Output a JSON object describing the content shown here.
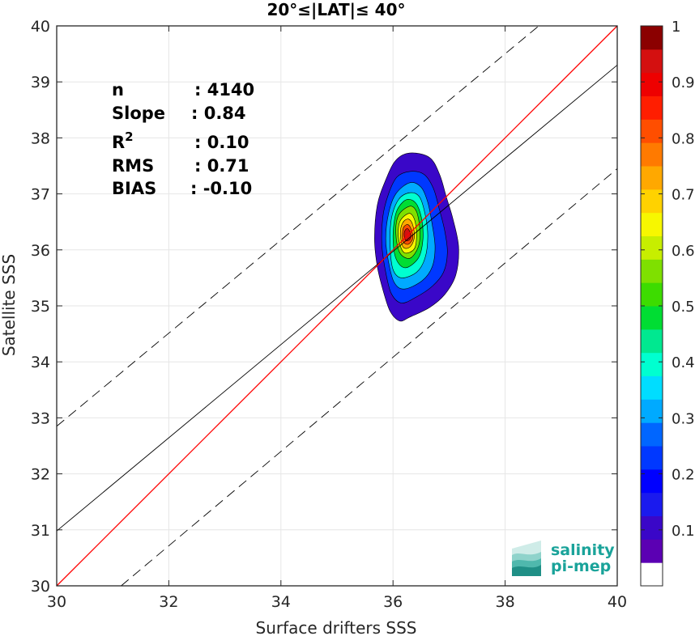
{
  "chart_data": {
    "type": "scatter",
    "subtype": "density-contour",
    "title": "20°≤|LAT|≤ 40°",
    "xlabel": "Surface drifters SSS",
    "ylabel": "Satellite SSS",
    "xlim": [
      30,
      40
    ],
    "ylim": [
      30,
      40
    ],
    "x_ticks": [
      "30",
      "32",
      "34",
      "36",
      "38",
      "40"
    ],
    "y_ticks": [
      "30",
      "31",
      "32",
      "33",
      "34",
      "35",
      "36",
      "37",
      "38",
      "39",
      "40"
    ],
    "grid": true,
    "stats": [
      {
        "key": "n",
        "value": ": 4140"
      },
      {
        "key": "Slope",
        "value": ": 0.84"
      },
      {
        "key": "R",
        "sup": "2",
        "value": ": 0.10"
      },
      {
        "key": "RMS",
        "value": ": 0.71"
      },
      {
        "key": "BIAS",
        "value": ": -0.10"
      }
    ],
    "lines": {
      "identity": {
        "color": "#ff0000",
        "points": [
          [
            30,
            30
          ],
          [
            40,
            40
          ]
        ]
      },
      "fit": {
        "color": "#000000",
        "points": [
          [
            30,
            30.98
          ],
          [
            40,
            39.3
          ]
        ]
      },
      "upper_bound": {
        "style": "dashed",
        "points": [
          [
            30,
            32.85
          ],
          [
            38.6,
            40
          ]
        ]
      },
      "lower_bound": {
        "style": "dashed",
        "points": [
          [
            31.15,
            30
          ],
          [
            40,
            37.45
          ]
        ]
      }
    },
    "density_contours": {
      "center": [
        36.25,
        36.25
      ],
      "levels": [
        0.05,
        0.15,
        0.25,
        0.35,
        0.45,
        0.55,
        0.65,
        0.75,
        0.85,
        0.95
      ],
      "rings": [
        {
          "level": 0.05,
          "color": "#3a07c8",
          "points": [
            [
              36.3,
              37.73
            ],
            [
              36.65,
              37.65
            ],
            [
              36.83,
              37.35
            ],
            [
              36.95,
              36.95
            ],
            [
              37.07,
              36.55
            ],
            [
              37.17,
              36.05
            ],
            [
              37.12,
              35.55
            ],
            [
              36.92,
              35.2
            ],
            [
              36.65,
              34.97
            ],
            [
              36.3,
              34.8
            ],
            [
              36.12,
              34.73
            ],
            [
              35.95,
              34.9
            ],
            [
              35.83,
              35.25
            ],
            [
              35.72,
              35.7
            ],
            [
              35.67,
              36.2
            ],
            [
              35.72,
              36.8
            ],
            [
              35.87,
              37.25
            ],
            [
              36.05,
              37.6
            ]
          ]
        },
        {
          "level": 0.15,
          "color": "#0038ff",
          "points": [
            [
              36.3,
              37.4
            ],
            [
              36.55,
              37.35
            ],
            [
              36.72,
              37.1
            ],
            [
              36.82,
              36.75
            ],
            [
              36.92,
              36.35
            ],
            [
              36.97,
              35.95
            ],
            [
              36.9,
              35.6
            ],
            [
              36.7,
              35.35
            ],
            [
              36.4,
              35.15
            ],
            [
              36.15,
              35.05
            ],
            [
              35.97,
              35.22
            ],
            [
              35.87,
              35.6
            ],
            [
              35.8,
              36.1
            ],
            [
              35.82,
              36.6
            ],
            [
              35.92,
              37.0
            ],
            [
              36.07,
              37.3
            ]
          ]
        },
        {
          "level": 0.25,
          "color": "#00aaff",
          "points": [
            [
              36.3,
              37.2
            ],
            [
              36.5,
              37.12
            ],
            [
              36.62,
              36.85
            ],
            [
              36.7,
              36.45
            ],
            [
              36.75,
              36.05
            ],
            [
              36.7,
              35.7
            ],
            [
              36.52,
              35.45
            ],
            [
              36.2,
              35.3
            ],
            [
              36.02,
              35.42
            ],
            [
              35.92,
              35.78
            ],
            [
              35.87,
              36.2
            ],
            [
              35.92,
              36.65
            ],
            [
              36.05,
              37.0
            ]
          ]
        },
        {
          "level": 0.35,
          "color": "#00ffd0",
          "points": [
            [
              36.3,
              37.02
            ],
            [
              36.47,
              36.95
            ],
            [
              36.57,
              36.65
            ],
            [
              36.62,
              36.25
            ],
            [
              36.57,
              35.85
            ],
            [
              36.42,
              35.6
            ],
            [
              36.15,
              35.5
            ],
            [
              36.0,
              35.65
            ],
            [
              35.95,
              36.05
            ],
            [
              35.97,
              36.55
            ],
            [
              36.1,
              36.9
            ]
          ]
        },
        {
          "level": 0.45,
          "color": "#00dd33",
          "points": [
            [
              36.3,
              36.9
            ],
            [
              36.43,
              36.8
            ],
            [
              36.52,
              36.5
            ],
            [
              36.53,
              36.15
            ],
            [
              36.45,
              35.85
            ],
            [
              36.22,
              35.68
            ],
            [
              36.05,
              35.85
            ],
            [
              36.0,
              36.25
            ],
            [
              36.05,
              36.65
            ],
            [
              36.17,
              36.85
            ]
          ]
        },
        {
          "level": 0.55,
          "color": "#7fe000",
          "points": [
            [
              36.3,
              36.78
            ],
            [
              36.42,
              36.68
            ],
            [
              36.48,
              36.35
            ],
            [
              36.45,
              36.05
            ],
            [
              36.3,
              35.85
            ],
            [
              36.12,
              35.95
            ],
            [
              36.05,
              36.3
            ],
            [
              36.1,
              36.62
            ]
          ]
        },
        {
          "level": 0.65,
          "color": "#f7f700",
          "points": [
            [
              36.28,
              36.65
            ],
            [
              36.38,
              36.55
            ],
            [
              36.42,
              36.28
            ],
            [
              36.38,
              36.02
            ],
            [
              36.2,
              35.95
            ],
            [
              36.1,
              36.2
            ],
            [
              36.12,
              36.5
            ]
          ]
        },
        {
          "level": 0.75,
          "color": "#ffa800",
          "points": [
            [
              36.27,
              36.55
            ],
            [
              36.35,
              36.45
            ],
            [
              36.38,
              36.22
            ],
            [
              36.3,
              36.05
            ],
            [
              36.18,
              36.05
            ],
            [
              36.13,
              36.28
            ],
            [
              36.17,
              36.48
            ]
          ]
        },
        {
          "level": 0.85,
          "color": "#ff4e00",
          "points": [
            [
              36.27,
              36.45
            ],
            [
              36.33,
              36.35
            ],
            [
              36.35,
              36.2
            ],
            [
              36.27,
              36.1
            ],
            [
              36.18,
              36.15
            ],
            [
              36.17,
              36.32
            ],
            [
              36.2,
              36.42
            ]
          ]
        },
        {
          "level": 0.95,
          "color": "#d41010",
          "points": [
            [
              36.26,
              36.38
            ],
            [
              36.31,
              36.3
            ],
            [
              36.31,
              36.2
            ],
            [
              36.24,
              36.16
            ],
            [
              36.2,
              36.24
            ],
            [
              36.21,
              36.34
            ]
          ]
        }
      ]
    },
    "colorbar": {
      "range": [
        0,
        1
      ],
      "tick_labels": [
        "0.1",
        "0.2",
        "0.3",
        "0.4",
        "0.5",
        "0.6",
        "0.7",
        "0.8",
        "0.9",
        "1"
      ],
      "tick_values": [
        0.1,
        0.2,
        0.3,
        0.4,
        0.5,
        0.6,
        0.7,
        0.8,
        0.9,
        1.0
      ],
      "colors": [
        "#ffffff",
        "#5b00b3",
        "#3a07c8",
        "#1a1aee",
        "#0000ff",
        "#0038ff",
        "#0066ff",
        "#00aaff",
        "#00ddff",
        "#00ffd0",
        "#00e890",
        "#00dd33",
        "#3ddc00",
        "#7fe000",
        "#c7ee00",
        "#f7f700",
        "#ffd200",
        "#ffa800",
        "#ff7a00",
        "#ff4e00",
        "#ff1e00",
        "#ee0000",
        "#d41010",
        "#8b0000"
      ]
    }
  },
  "logo": {
    "line1": "salinity",
    "line2": "pi-mep",
    "color": "#1aa39a"
  }
}
